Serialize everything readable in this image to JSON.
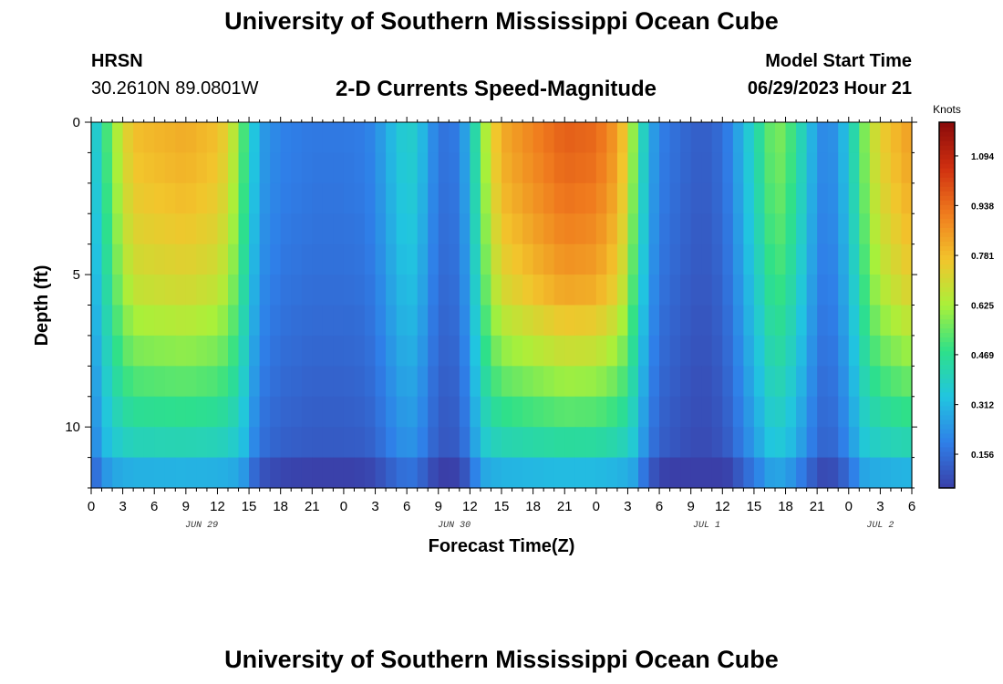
{
  "page": {
    "title": "University of Southern Mississippi Ocean Cube",
    "footer_title": "University of Southern Mississippi Ocean Cube",
    "station": "HRSN",
    "coords": "30.2610N  89.0801W",
    "plot_title": "2-D Currents Speed-Magnitude",
    "model_label": "Model Start Time",
    "model_time": "06/29/2023 Hour 21"
  },
  "chart_data": {
    "type": "heatmap",
    "title": "2-D Currents Speed-Magnitude",
    "xlabel": "Forecast Time(Z)",
    "ylabel": "Depth (ft)",
    "x_tick_labels": [
      "0",
      "3",
      "6",
      "9",
      "12",
      "15",
      "18",
      "21",
      "0",
      "3",
      "6",
      "9",
      "12",
      "15",
      "18",
      "21",
      "0",
      "3",
      "6",
      "9",
      "12",
      "15",
      "18",
      "21",
      "0",
      "3",
      "6"
    ],
    "date_labels": [
      {
        "label": "JUN 29",
        "hour": 10.5
      },
      {
        "label": "JUN 30",
        "hour": 34.5
      },
      {
        "label": "JUL 1",
        "hour": 58.5
      },
      {
        "label": "JUL 2",
        "hour": 75
      }
    ],
    "x_range_hours": [
      0,
      78
    ],
    "y_tick_labels": [
      "0",
      "5",
      "10"
    ],
    "y_tick_values": [
      0,
      5,
      10
    ],
    "y_range_ft": [
      0,
      12
    ],
    "colorbar": {
      "unit": "Knots",
      "tick_labels": [
        "1.094",
        "0.938",
        "0.781",
        "0.625",
        "0.469",
        "0.312",
        "0.156"
      ],
      "tick_values": [
        1.094,
        0.938,
        0.781,
        0.625,
        0.469,
        0.312,
        0.156
      ],
      "range": [
        0.05,
        1.2
      ],
      "colors": [
        "#3a3fa8",
        "#2f7fe8",
        "#21c5e0",
        "#2ee08a",
        "#a9f03a",
        "#f2c52c",
        "#f07c1e",
        "#d03010",
        "#8a0a0a"
      ]
    },
    "time_profile": [
      [
        0,
        0.3
      ],
      [
        1,
        0.44
      ],
      [
        2,
        0.58
      ],
      [
        3,
        0.7
      ],
      [
        4,
        0.78
      ],
      [
        6,
        0.8
      ],
      [
        9,
        0.82
      ],
      [
        12,
        0.78
      ],
      [
        13,
        0.72
      ],
      [
        14,
        0.6
      ],
      [
        15,
        0.42
      ],
      [
        16,
        0.26
      ],
      [
        18,
        0.2
      ],
      [
        21,
        0.18
      ],
      [
        24,
        0.18
      ],
      [
        26,
        0.19
      ],
      [
        27,
        0.22
      ],
      [
        28,
        0.28
      ],
      [
        29,
        0.34
      ],
      [
        30,
        0.38
      ],
      [
        31,
        0.36
      ],
      [
        32,
        0.26
      ],
      [
        33,
        0.18
      ],
      [
        34,
        0.16
      ],
      [
        35,
        0.2
      ],
      [
        36,
        0.32
      ],
      [
        37,
        0.55
      ],
      [
        38,
        0.72
      ],
      [
        39,
        0.82
      ],
      [
        42,
        0.9
      ],
      [
        45,
        0.97
      ],
      [
        48,
        0.95
      ],
      [
        50,
        0.85
      ],
      [
        51,
        0.72
      ],
      [
        52,
        0.48
      ],
      [
        53,
        0.3
      ],
      [
        54,
        0.2
      ],
      [
        55,
        0.17
      ],
      [
        57,
        0.13
      ],
      [
        58,
        0.12
      ],
      [
        59,
        0.13
      ],
      [
        60,
        0.16
      ],
      [
        61,
        0.22
      ],
      [
        62,
        0.32
      ],
      [
        63,
        0.4
      ],
      [
        64,
        0.5
      ],
      [
        65,
        0.58
      ],
      [
        66,
        0.55
      ],
      [
        67,
        0.46
      ],
      [
        68,
        0.36
      ],
      [
        69,
        0.24
      ],
      [
        70,
        0.2
      ],
      [
        71,
        0.26
      ],
      [
        72,
        0.36
      ],
      [
        73,
        0.5
      ],
      [
        74,
        0.65
      ],
      [
        75,
        0.74
      ],
      [
        76,
        0.78
      ],
      [
        77,
        0.82
      ],
      [
        78,
        0.85
      ]
    ]
  }
}
